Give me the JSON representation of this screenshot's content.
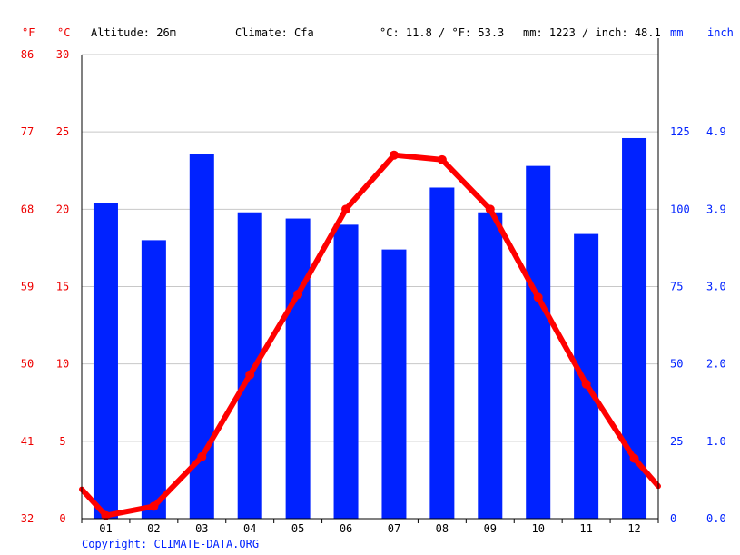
{
  "header": {
    "unit_f": "°F",
    "unit_c": "°C",
    "altitude": "Altitude: 26m",
    "climate": "Climate: Cfa",
    "temp_avg": "°C: 11.8 / °F: 53.3",
    "precip_total": "mm: 1223 / inch: 48.1",
    "unit_mm": "mm",
    "unit_inch": "inch"
  },
  "copyright": "Copyright: CLIMATE-DATA.ORG",
  "colors": {
    "temperature": "#ff0000",
    "precipitation": "#0022ff",
    "grid": "#c8c8c8",
    "axis": "#000000"
  },
  "chart_data": {
    "type": "bar",
    "categories": [
      "01",
      "02",
      "03",
      "04",
      "05",
      "06",
      "07",
      "08",
      "09",
      "10",
      "11",
      "12"
    ],
    "series": [
      {
        "type": "bar",
        "axis": "right_mm",
        "values": [
          102,
          90,
          118,
          99,
          97,
          95,
          87,
          107,
          99,
          114,
          92,
          123
        ]
      },
      {
        "type": "line",
        "axis": "left_celsius",
        "values": [
          0.2,
          0.8,
          4.0,
          9.3,
          14.5,
          20.0,
          23.5,
          23.2,
          20.0,
          14.3,
          8.7,
          3.9
        ]
      }
    ],
    "temp_start": 1.9,
    "temp_end": 2.1,
    "left_axis_c": {
      "range": [
        0,
        30
      ],
      "ticks": [
        "0",
        "5",
        "10",
        "15",
        "20",
        "25",
        "30"
      ]
    },
    "left_axis_f": {
      "ticks": [
        "32",
        "41",
        "50",
        "59",
        "68",
        "77",
        "86"
      ]
    },
    "right_axis_mm": {
      "range": [
        0,
        150
      ],
      "ticks": [
        "0",
        "25",
        "50",
        "75",
        "100",
        "125"
      ]
    },
    "right_axis_inch": {
      "ticks": [
        "0.0",
        "1.0",
        "2.0",
        "3.0",
        "3.9",
        "4.9"
      ]
    },
    "grid": true
  }
}
